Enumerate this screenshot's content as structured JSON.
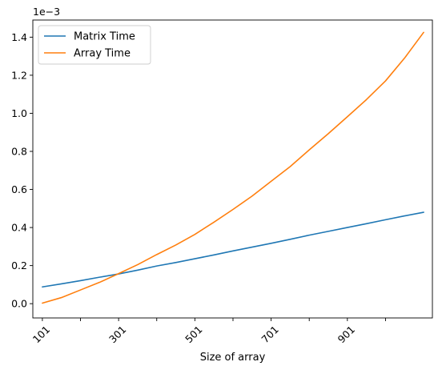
{
  "chart_data": {
    "type": "line",
    "title": "",
    "xlabel": "Size of array",
    "ylabel": "",
    "y_scale_label": "1e−3",
    "xlim": [
      76,
      1124
    ],
    "ylim": [
      -0.075,
      1.49
    ],
    "x_ticks": [
      101,
      201,
      301,
      401,
      501,
      601,
      701,
      801,
      901,
      1001
    ],
    "x_tick_labels": [
      "101",
      "",
      "301",
      "",
      "501",
      "",
      "701",
      "",
      "901",
      ""
    ],
    "y_ticks": [
      0.0,
      0.2,
      0.4,
      0.6,
      0.8,
      1.0,
      1.2,
      1.4
    ],
    "y_tick_labels": [
      "0.0",
      "0.2",
      "0.4",
      "0.6",
      "0.8",
      "1.0",
      "1.2",
      "1.4"
    ],
    "grid": false,
    "legend_position": "top-left",
    "x": [
      101,
      151,
      201,
      251,
      301,
      351,
      401,
      451,
      501,
      551,
      601,
      651,
      701,
      751,
      801,
      851,
      901,
      951,
      1001,
      1051,
      1101
    ],
    "series": [
      {
        "name": "Matrix Time",
        "color": "#1f77b4",
        "values": [
          0.088,
          0.104,
          0.121,
          0.139,
          0.156,
          0.176,
          0.198,
          0.216,
          0.236,
          0.256,
          0.277,
          0.297,
          0.317,
          0.338,
          0.36,
          0.38,
          0.4,
          0.42,
          0.441,
          0.461,
          0.48
        ]
      },
      {
        "name": "Array Time",
        "color": "#ff7f0e",
        "values": [
          0.003,
          0.032,
          0.072,
          0.112,
          0.158,
          0.205,
          0.258,
          0.308,
          0.364,
          0.428,
          0.495,
          0.565,
          0.643,
          0.72,
          0.808,
          0.893,
          0.982,
          1.072,
          1.17,
          1.29,
          1.425
        ]
      }
    ]
  }
}
